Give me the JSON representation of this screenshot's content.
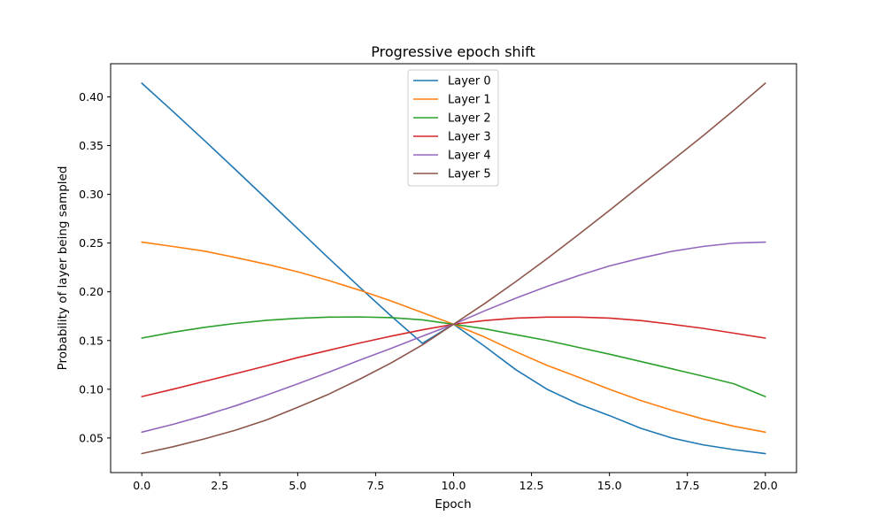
{
  "chart_data": {
    "type": "line",
    "title": "Progressive epoch shift",
    "xlabel": "Epoch",
    "ylabel": "Probability of layer being sampled",
    "xlim": [
      -1,
      21
    ],
    "ylim": [
      0.0145,
      0.434
    ],
    "xticks": [
      0.0,
      2.5,
      5.0,
      7.5,
      10.0,
      12.5,
      15.0,
      17.5,
      20.0
    ],
    "xtick_labels": [
      "0.0",
      "2.5",
      "5.0",
      "7.5",
      "10.0",
      "12.5",
      "15.0",
      "17.5",
      "20.0"
    ],
    "yticks": [
      0.05,
      0.1,
      0.15,
      0.2,
      0.25,
      0.3,
      0.35,
      0.4
    ],
    "ytick_labels": [
      "0.05",
      "0.10",
      "0.15",
      "0.20",
      "0.25",
      "0.30",
      "0.35",
      "0.40"
    ],
    "grid": false,
    "legend_position": "top-center",
    "x": [
      0,
      1,
      2,
      3,
      4,
      5,
      6,
      7,
      8,
      9,
      10,
      11,
      12,
      13,
      14,
      15,
      16,
      17,
      18,
      19,
      20
    ],
    "series": [
      {
        "name": "Layer 0",
        "color": "#1f77b4",
        "values": [
          0.414,
          0.385,
          0.3555,
          0.3255,
          0.2952,
          0.2647,
          0.2343,
          0.2043,
          0.1751,
          0.1471,
          0.1667,
          0.144,
          0.12,
          0.1,
          0.085,
          0.073,
          0.06,
          0.05,
          0.043,
          0.038,
          0.034
        ]
      },
      {
        "name": "Layer 1",
        "color": "#ff7f0e",
        "values": [
          0.251,
          0.2465,
          0.2418,
          0.2352,
          0.2283,
          0.2205,
          0.2115,
          0.2015,
          0.1905,
          0.1786,
          0.1667,
          0.1535,
          0.1385,
          0.1245,
          0.1125,
          0.1,
          0.0885,
          0.0785,
          0.0695,
          0.062,
          0.056
        ]
      },
      {
        "name": "Layer 2",
        "color": "#2ca02c",
        "values": [
          0.1525,
          0.1585,
          0.1635,
          0.1675,
          0.1707,
          0.1728,
          0.174,
          0.1742,
          0.1735,
          0.1712,
          0.1667,
          0.162,
          0.156,
          0.15,
          0.143,
          0.136,
          0.1285,
          0.121,
          0.1135,
          0.1055,
          0.0925
        ]
      },
      {
        "name": "Layer 3",
        "color": "#d62728",
        "values": [
          0.0925,
          0.1,
          0.108,
          0.116,
          0.124,
          0.1325,
          0.14,
          0.1475,
          0.1545,
          0.161,
          0.1667,
          0.1705,
          0.173,
          0.174,
          0.174,
          0.173,
          0.1705,
          0.1667,
          0.1625,
          0.1575,
          0.1525
        ]
      },
      {
        "name": "Layer 4",
        "color": "#9467bd",
        "values": [
          0.056,
          0.064,
          0.073,
          0.083,
          0.094,
          0.1055,
          0.1175,
          0.13,
          0.142,
          0.1545,
          0.1667,
          0.1805,
          0.1935,
          0.2055,
          0.2165,
          0.2265,
          0.2345,
          0.2415,
          0.2465,
          0.25,
          0.251
        ]
      },
      {
        "name": "Layer 5",
        "color": "#8c564b",
        "values": [
          0.034,
          0.041,
          0.049,
          0.058,
          0.0685,
          0.0815,
          0.095,
          0.1105,
          0.127,
          0.1455,
          0.1667,
          0.188,
          0.2105,
          0.234,
          0.2585,
          0.2835,
          0.309,
          0.3345,
          0.36,
          0.3865,
          0.414
        ]
      }
    ]
  }
}
